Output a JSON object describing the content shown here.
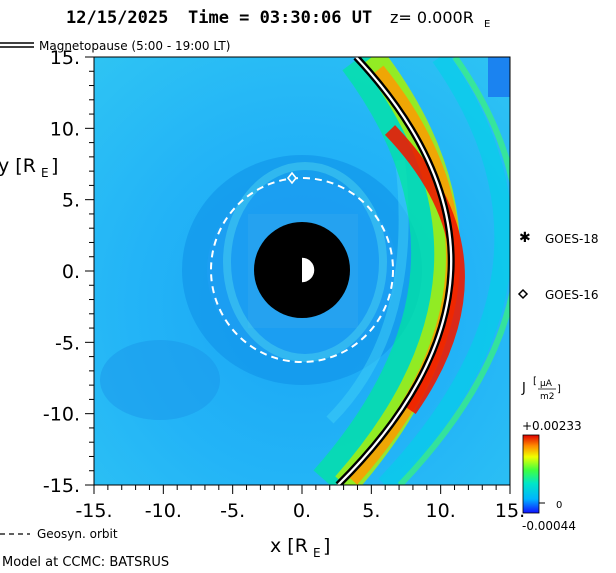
{
  "header": {
    "date": "12/15/2025",
    "time_label": "Time = 03:30:06 UT",
    "z_label": "z= 0.000R",
    "z_sub": "E"
  },
  "legend": {
    "magnetopause": "Magnetopause (5:00 - 19:00 LT)",
    "geosyn_orbit": "Geosyn. orbit",
    "goes18": "GOES-18",
    "goes16": "GOES-16"
  },
  "axes": {
    "x_label": "x [R",
    "x_sub": "E",
    "y_label": "y [R",
    "y_sub": "E",
    "x_ticks": [
      "-15.",
      "-10.",
      "-5.",
      "0.",
      "5.",
      "10.",
      "15."
    ],
    "y_ticks": [
      "15.",
      "10.",
      "5.",
      "0.",
      "-5.",
      "-10.",
      "-15."
    ],
    "range": [
      -15,
      15
    ]
  },
  "colorbar": {
    "title": "J",
    "unit_num": "μA",
    "unit_den": "m2",
    "max_label": "+0.00233",
    "mid_label": "0",
    "min_label": "-0.00044",
    "colors": [
      "#0000ff",
      "#00c8ff",
      "#00ff64",
      "#ffff00",
      "#ff8c00",
      "#e60000"
    ]
  },
  "footer": {
    "model": "Model at CCMC: BATSRUS"
  }
}
